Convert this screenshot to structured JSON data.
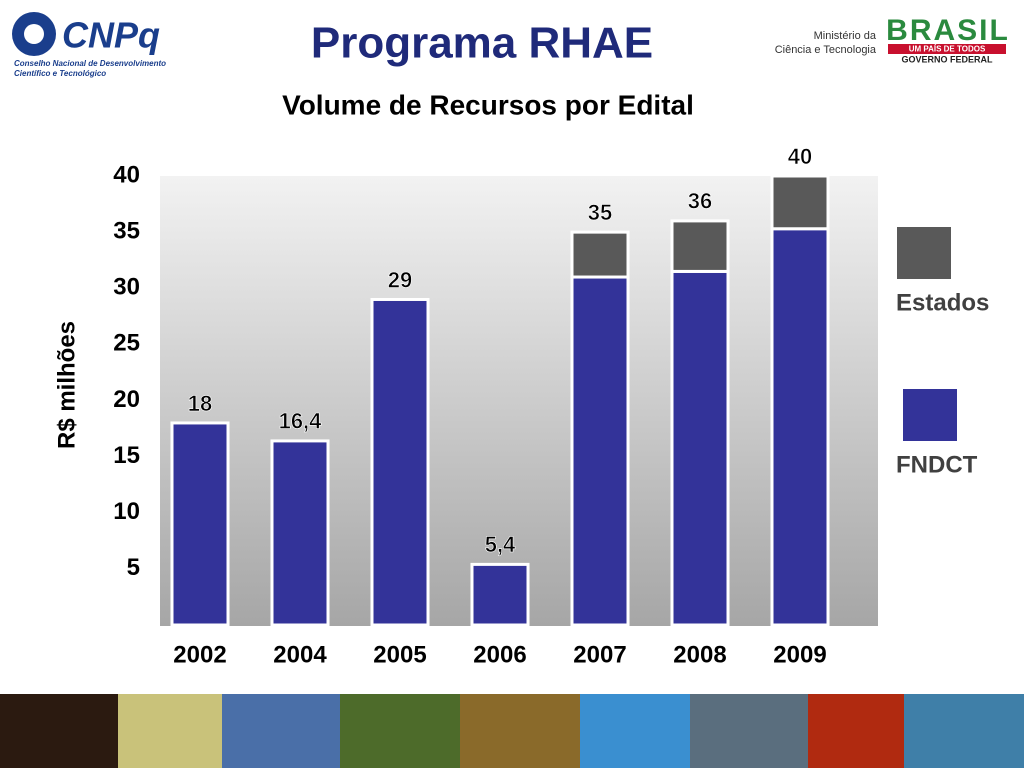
{
  "header": {
    "logo": "CNPq",
    "logo_subtitle": [
      "Conselho Nacional de Desenvolvimento",
      "Científico e Tecnológico"
    ],
    "title": "Programa RHAE",
    "ministry": [
      "Ministério da",
      "Ciência e Tecnologia"
    ],
    "brasil": "BRASIL",
    "slogan": "UM PAÍS DE TODOS",
    "government": "GOVERNO FEDERAL"
  },
  "chart_data": {
    "type": "bar",
    "stacked": true,
    "title": "Volume de Recursos por Edital",
    "y_label": "R$ milhões",
    "categories": [
      "2002",
      "2004",
      "2005",
      "2006",
      "2007",
      "2008",
      "2009"
    ],
    "series": [
      {
        "name": "FNDCT",
        "color": "#333399",
        "values": [
          18,
          16.4,
          29,
          5.4,
          31,
          31.5,
          35.3
        ]
      },
      {
        "name": "Estados",
        "color": "#595959",
        "values": [
          null,
          null,
          null,
          null,
          4,
          4.5,
          4.7
        ]
      }
    ],
    "totals": [
      18,
      16.4,
      29,
      5.4,
      35,
      36,
      40
    ],
    "total_labels": [
      "18",
      "16,4",
      "29",
      "5,4",
      "35",
      "36",
      "40"
    ],
    "ylim": [
      0,
      40
    ],
    "yticks": [
      5,
      10,
      15,
      20,
      25,
      30,
      35,
      40
    ]
  }
}
